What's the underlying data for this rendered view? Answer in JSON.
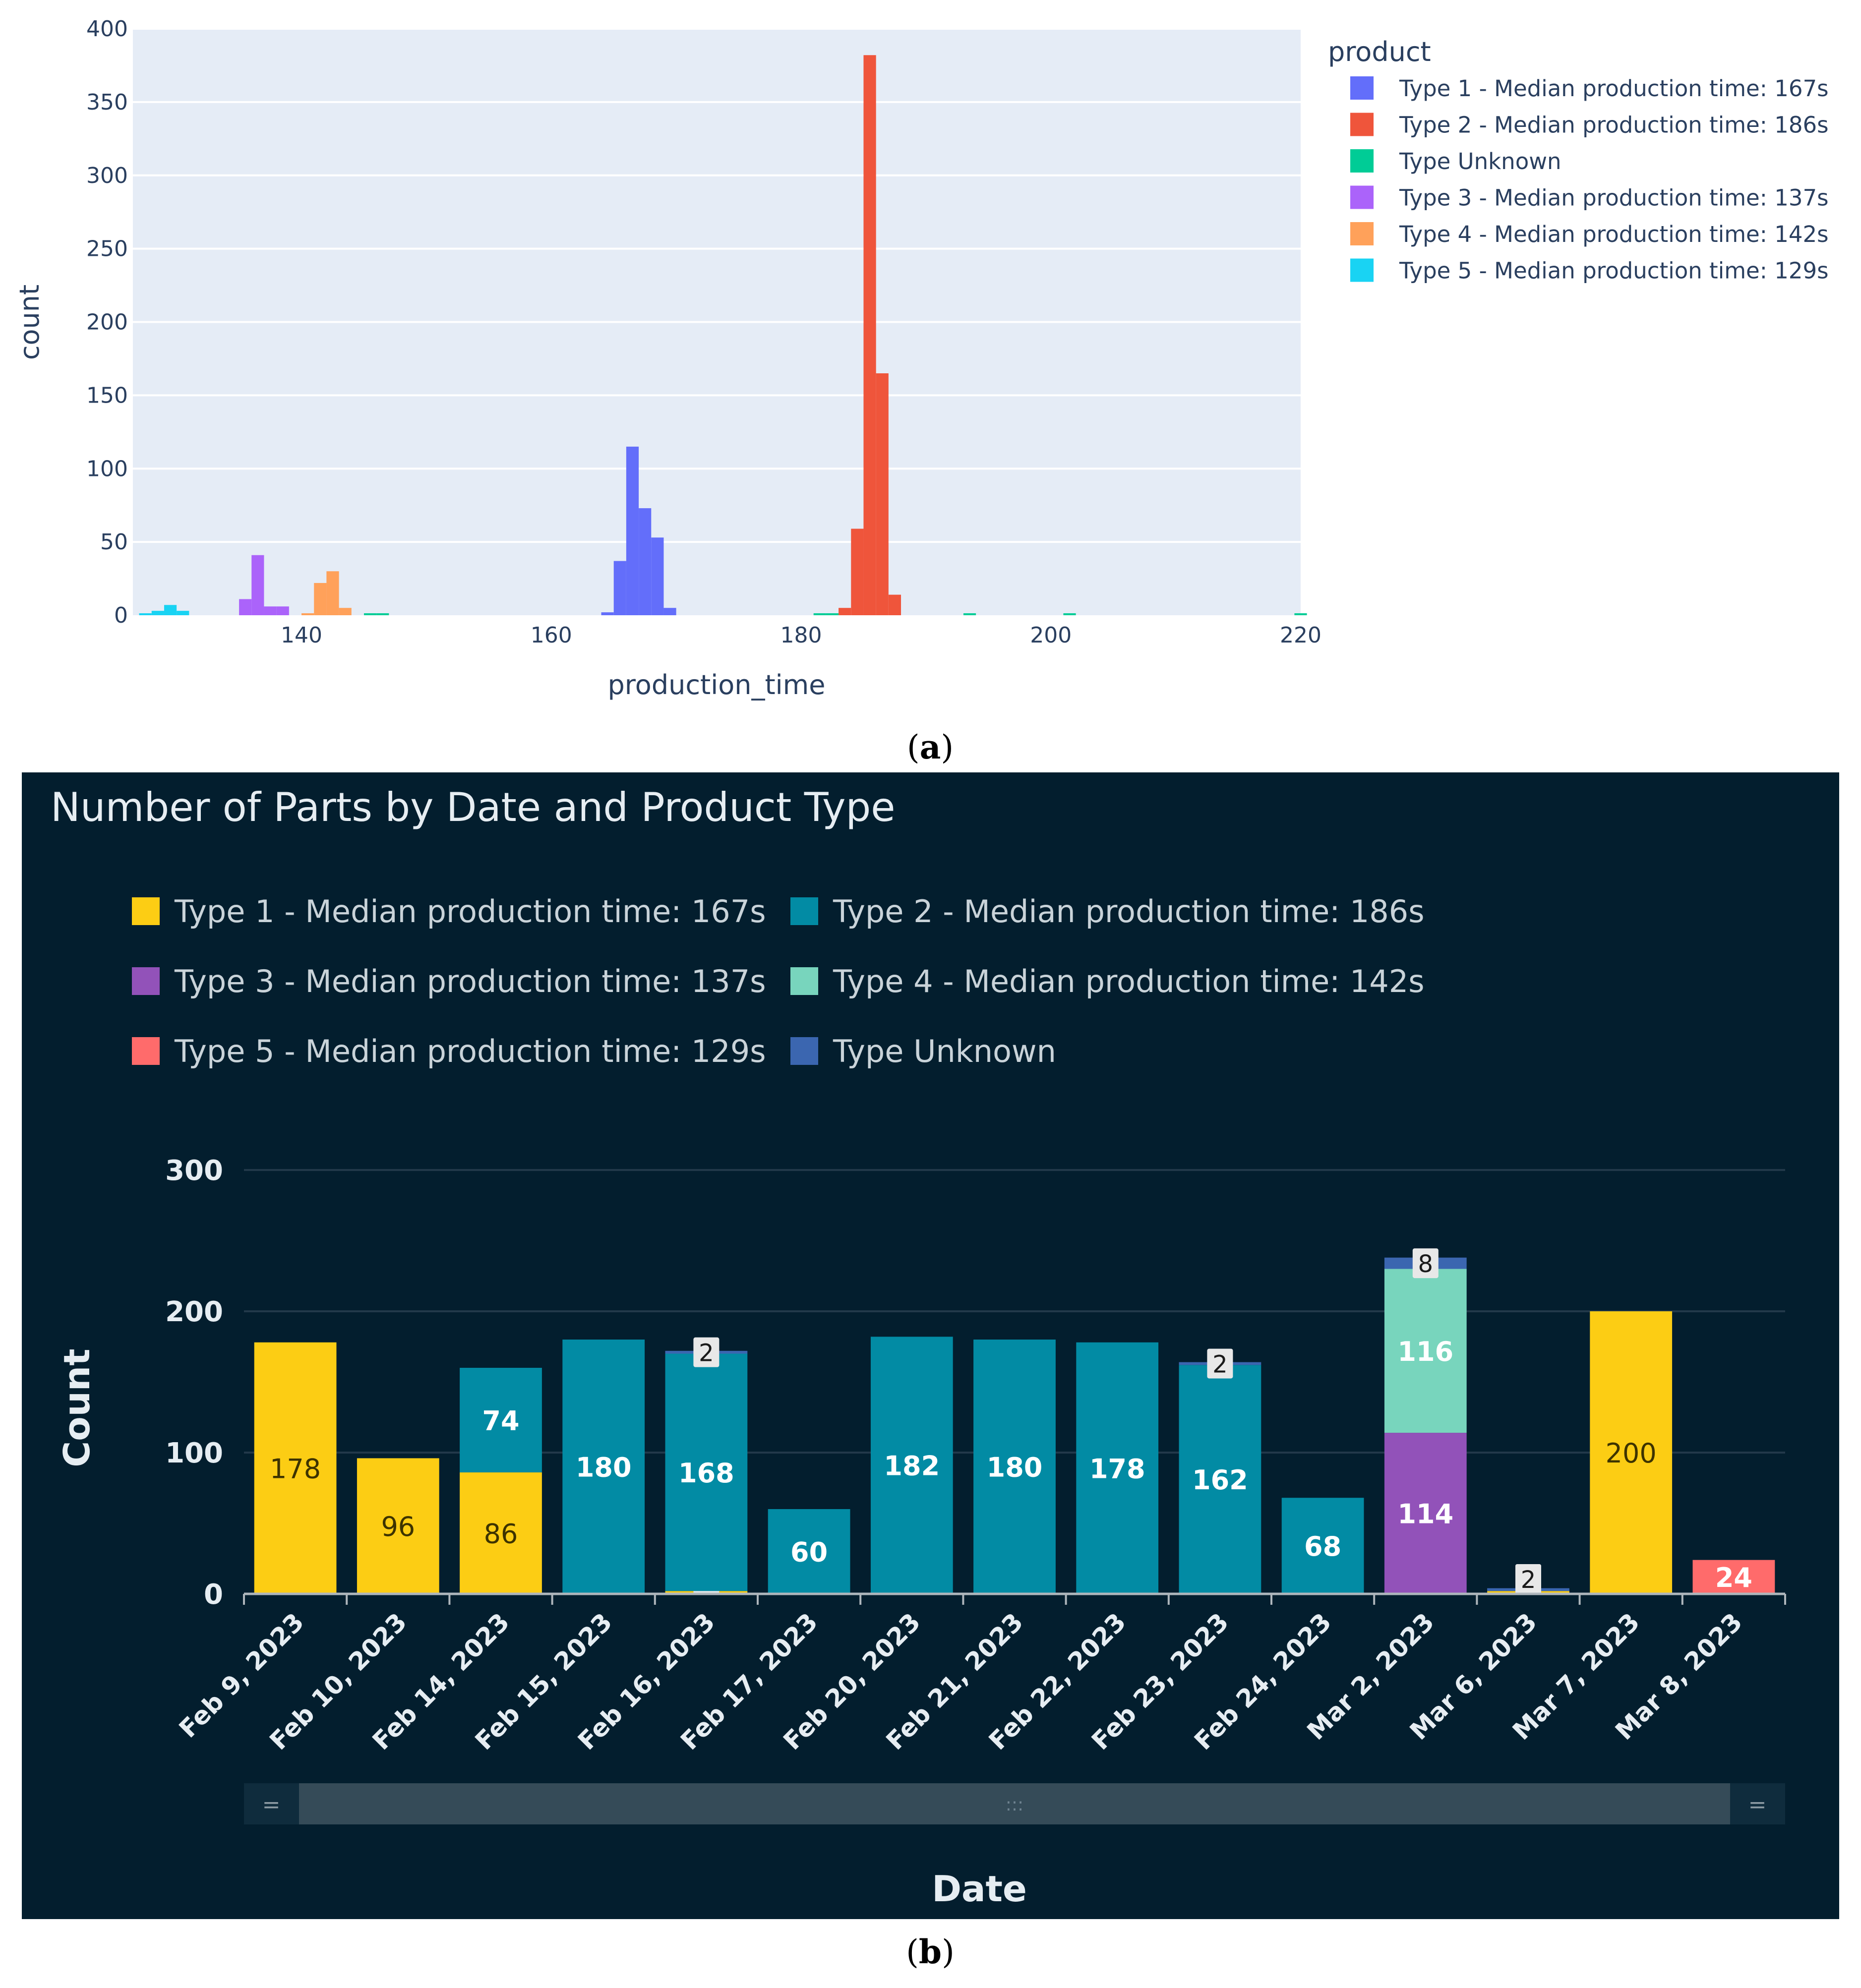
{
  "chart_data": [
    {
      "type": "bar",
      "subtype": "histogram",
      "panel_label": "(a)",
      "panel_letter": "a",
      "xlabel": "production_time",
      "ylabel": "count",
      "xlim": [
        126.5,
        220
      ],
      "ylim": [
        0,
        400
      ],
      "xticks": [
        140,
        160,
        180,
        200,
        220
      ],
      "yticks": [
        0,
        50,
        100,
        150,
        200,
        250,
        300,
        350,
        400
      ],
      "bin_width": 1,
      "legend_title": "product",
      "grid": true,
      "series": [
        {
          "name": "Type 1 - Median production time: 167s",
          "color": "#636efa",
          "bins": [
            {
              "x": 164,
              "count": 2
            },
            {
              "x": 165,
              "count": 37
            },
            {
              "x": 166,
              "count": 115
            },
            {
              "x": 167,
              "count": 73
            },
            {
              "x": 168,
              "count": 53
            },
            {
              "x": 169,
              "count": 5
            }
          ]
        },
        {
          "name": "Type 2 - Median production time: 186s",
          "color": "#ef553b",
          "bins": [
            {
              "x": 182,
              "count": 1
            },
            {
              "x": 183,
              "count": 5
            },
            {
              "x": 184,
              "count": 59
            },
            {
              "x": 185,
              "count": 382
            },
            {
              "x": 186,
              "count": 165
            },
            {
              "x": 187,
              "count": 14
            }
          ]
        },
        {
          "name": "Type Unknown",
          "color": "#00cc96",
          "bins": [
            {
              "x": 145,
              "count": 1
            },
            {
              "x": 146,
              "count": 1
            },
            {
              "x": 181,
              "count": 1
            },
            {
              "x": 182,
              "count": 1
            },
            {
              "x": 193,
              "count": 1
            },
            {
              "x": 201,
              "count": 1
            },
            {
              "x": 219.5,
              "count": 1
            }
          ]
        },
        {
          "name": "Type 3 - Median production time: 137s",
          "color": "#ab63fa",
          "bins": [
            {
              "x": 135,
              "count": 11
            },
            {
              "x": 136,
              "count": 41
            },
            {
              "x": 137,
              "count": 6
            },
            {
              "x": 138,
              "count": 6
            }
          ]
        },
        {
          "name": "Type 4 - Median production time: 142s",
          "color": "#ffa15a",
          "bins": [
            {
              "x": 140,
              "count": 1
            },
            {
              "x": 141,
              "count": 22
            },
            {
              "x": 142,
              "count": 30
            },
            {
              "x": 143,
              "count": 5
            }
          ]
        },
        {
          "name": "Type 5 - Median production time: 129s",
          "color": "#19d3f3",
          "bins": [
            {
              "x": 127,
              "count": 1
            },
            {
              "x": 128,
              "count": 3
            },
            {
              "x": 129,
              "count": 7
            },
            {
              "x": 130,
              "count": 3
            }
          ]
        }
      ]
    },
    {
      "type": "bar",
      "subtype": "stacked",
      "panel_label": "(b)",
      "panel_letter": "b",
      "title": "Number of Parts by Date and Product Type",
      "xlabel": "Date",
      "ylabel": "Count",
      "ylim": [
        0,
        300
      ],
      "yticks": [
        0,
        100,
        200,
        300
      ],
      "grid": true,
      "legend_position": "top-left",
      "categories": [
        "Feb 9, 2023",
        "Feb 10, 2023",
        "Feb 14, 2023",
        "Feb 15, 2023",
        "Feb 16, 2023",
        "Feb 17, 2023",
        "Feb 20, 2023",
        "Feb 21, 2023",
        "Feb 22, 2023",
        "Feb 23, 2023",
        "Feb 24, 2023",
        "Mar 2, 2023",
        "Mar 6, 2023",
        "Mar 7, 2023",
        "Mar 8, 2023"
      ],
      "series": [
        {
          "name": "Type 1 - Median production time: 167s",
          "color": "#fccd14",
          "label_color": "#3d3300",
          "values": [
            178,
            96,
            86,
            0,
            2,
            0,
            0,
            0,
            0,
            0,
            0,
            0,
            2,
            200,
            0
          ]
        },
        {
          "name": "Type 2 - Median production time: 186s",
          "color": "#028ba4",
          "label_color": "#ffffff",
          "values": [
            0,
            0,
            74,
            180,
            168,
            60,
            182,
            180,
            178,
            162,
            68,
            0,
            0,
            0,
            0
          ]
        },
        {
          "name": "Type 3 - Median production time: 137s",
          "color": "#9252b9",
          "label_color": "#ffffff",
          "values": [
            0,
            0,
            0,
            0,
            0,
            0,
            0,
            0,
            0,
            0,
            0,
            114,
            0,
            0,
            0
          ]
        },
        {
          "name": "Type 4 - Median production time: 142s",
          "color": "#78d5bd",
          "label_color": "#ffffff",
          "values": [
            0,
            0,
            0,
            0,
            0,
            0,
            0,
            0,
            0,
            0,
            0,
            116,
            0,
            0,
            0
          ]
        },
        {
          "name": "Type 5 - Median production time: 129s",
          "color": "#ff6b6b",
          "label_color": "#ffffff",
          "values": [
            0,
            0,
            0,
            0,
            0,
            0,
            0,
            0,
            0,
            0,
            0,
            0,
            0,
            0,
            24
          ]
        },
        {
          "name": "Type Unknown",
          "color": "#3b66b0",
          "label_color": "#ffffff",
          "values": [
            0,
            0,
            0,
            0,
            2,
            0,
            0,
            0,
            0,
            2,
            0,
            8,
            2,
            0,
            0
          ]
        }
      ],
      "legend_order": [
        0,
        1,
        2,
        3,
        4,
        5
      ],
      "scrollbar": {
        "left_handle": "=",
        "right_handle": "=",
        "grip": ":::"
      }
    }
  ]
}
